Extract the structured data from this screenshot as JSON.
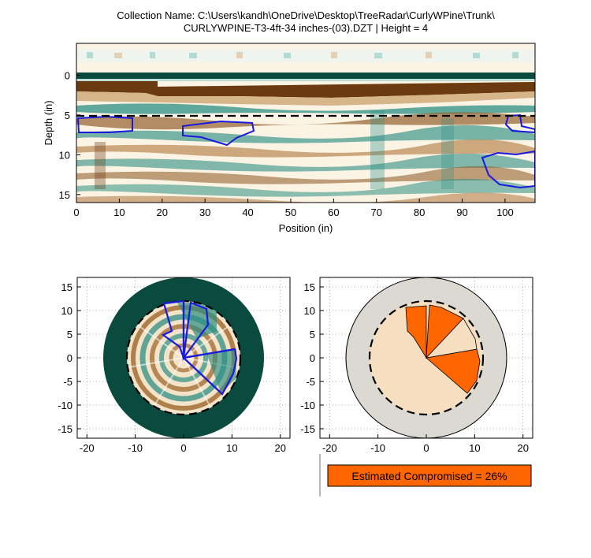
{
  "figure": {
    "title_line1": "Collection Name: C:\\Users\\kandh\\OneDrive\\Desktop\\TreeRadar\\CurlyWPine\\Trunk\\",
    "title_line2": "CURLYWPINE-T3-4ft-34 inches-(03).DZT | Height = 4",
    "summary_text": "Estimated Compromised = 26%",
    "colors": {
      "orange": "#ff6600",
      "tan": "#f5dfc0",
      "trunk_gray": "#dcd8d2",
      "dark_teal": "#0b4a3e",
      "brown": "#6b3a10",
      "blue": "#1a1adf"
    }
  },
  "chart_data": [
    {
      "type": "heatmap",
      "title": "",
      "xlabel": "Position (in)",
      "ylabel": "Depth (in)",
      "xlim": [
        0,
        107
      ],
      "ylim": [
        16,
        -4
      ],
      "x_ticks": [
        0,
        10,
        20,
        30,
        40,
        50,
        60,
        70,
        80,
        90,
        100
      ],
      "y_ticks": [
        0,
        5,
        10,
        15
      ],
      "threshold_depth": 5,
      "compromised_regions": [
        {
          "name": "region-1",
          "x_range": [
            0,
            13
          ],
          "depth_range": [
            5,
            7.5
          ]
        },
        {
          "name": "region-2",
          "x_range": [
            25,
            42
          ],
          "depth_range": [
            5.5,
            8.5
          ]
        },
        {
          "name": "region-3",
          "x_range": [
            100,
            107
          ],
          "depth_range": [
            5,
            7
          ]
        },
        {
          "name": "region-4",
          "x_range": [
            95,
            107
          ],
          "depth_range": [
            9.5,
            14
          ]
        }
      ]
    },
    {
      "type": "heatmap",
      "title": "",
      "xlim": [
        -22,
        22
      ],
      "ylim": [
        -17,
        17
      ],
      "x_ticks": [
        -20,
        -10,
        0,
        10,
        20
      ],
      "y_ticks": [
        15,
        10,
        5,
        0,
        -5,
        -10,
        -15
      ],
      "trunk_radius": 17,
      "inner_radius": 12,
      "compromised_outline": "blue polar outline"
    },
    {
      "type": "pie",
      "title": "",
      "xlim": [
        -22,
        22
      ],
      "ylim": [
        -17,
        17
      ],
      "x_ticks": [
        -20,
        -10,
        0,
        10,
        20
      ],
      "y_ticks": [
        15,
        10,
        5,
        0,
        -5,
        -10,
        -15
      ],
      "trunk_radius": 17,
      "inner_radius": 12,
      "compromised_percent": 26
    }
  ]
}
